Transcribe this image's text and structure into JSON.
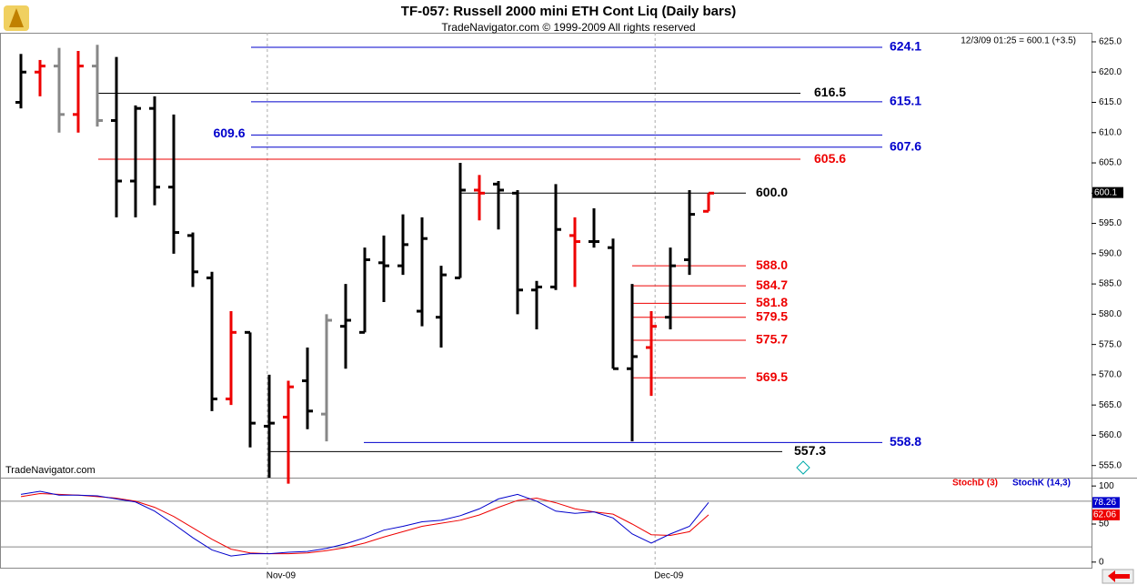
{
  "chart_data": [
    {
      "type": "ohlc",
      "title": "TF-057:  Russell 2000 mini ETH Cont Liq  (Daily bars)",
      "subtitle": "TradeNavigator.com © 1999-2009 All rights reserved",
      "info": "12/3/09 01:25 = 600.1 (+3.5)",
      "watermark": "TradeNavigator.com",
      "last": {
        "value": 600.1,
        "label": "600.1"
      },
      "ylim": [
        553,
        626.5
      ],
      "yticks": [
        {
          "value": 555,
          "label": "555.0"
        },
        {
          "value": 560,
          "label": "560.0"
        },
        {
          "value": 565,
          "label": "565.0"
        },
        {
          "value": 570,
          "label": "570.0"
        },
        {
          "value": 575,
          "label": "575.0"
        },
        {
          "value": 580,
          "label": "580.0"
        },
        {
          "value": 585,
          "label": "585.0"
        },
        {
          "value": 590,
          "label": "590.0"
        },
        {
          "value": 595,
          "label": "595.0"
        },
        {
          "value": 600,
          "label": "600.0"
        },
        {
          "value": 605,
          "label": "605.0"
        },
        {
          "value": 610,
          "label": "610.0"
        },
        {
          "value": 615,
          "label": "615.0"
        },
        {
          "value": 620,
          "label": "620.0"
        },
        {
          "value": 625,
          "label": "625.0"
        }
      ],
      "open": [
        615,
        620,
        621,
        613,
        621,
        612,
        602,
        614,
        601,
        593,
        586,
        566,
        577,
        561.5,
        563,
        569,
        563.5,
        578,
        577,
        588.5,
        588,
        580.5,
        579.5,
        586,
        600.5,
        601.5,
        600,
        584,
        584.5,
        593,
        592,
        591,
        571,
        574.5,
        579.5,
        589,
        597
      ],
      "high": [
        623,
        622,
        624,
        623.5,
        624.5,
        622.5,
        614.5,
        616,
        613,
        593.5,
        587,
        580.5,
        577,
        570,
        569,
        574.5,
        580,
        585,
        591,
        593,
        596.5,
        596,
        588,
        605,
        603,
        602,
        600.5,
        585.5,
        601.5,
        596,
        597.5,
        592.5,
        585,
        580.5,
        591,
        600.5,
        600
      ],
      "low": [
        614,
        616,
        610,
        610,
        611,
        596,
        596,
        598,
        590,
        584.5,
        564,
        565,
        558,
        553,
        552,
        561,
        559,
        571,
        577,
        582,
        586.5,
        578,
        574.5,
        586,
        595.5,
        594,
        580,
        577.5,
        584,
        584.5,
        591,
        571,
        559,
        566.5,
        577.5,
        586.5,
        597
      ],
      "close": [
        620,
        621,
        613,
        621,
        612,
        602,
        614,
        601,
        593.5,
        587,
        566,
        577,
        562,
        562,
        568,
        564,
        579,
        579,
        589,
        588,
        591.5,
        592.5,
        586.5,
        600.5,
        600,
        600.5,
        584,
        584.5,
        594,
        592,
        592,
        571,
        573,
        578,
        588,
        596.5,
        600
      ],
      "colors": [
        "#000",
        "#e00",
        "#888",
        "#e00",
        "#888",
        "#000",
        "#000",
        "#000",
        "#000",
        "#000",
        "#000",
        "#e00",
        "#000",
        "#000",
        "#e00",
        "#000",
        "#888",
        "#000",
        "#000",
        "#000",
        "#000",
        "#000",
        "#000",
        "#000",
        "#e00",
        "#000",
        "#000",
        "#000",
        "#000",
        "#e00",
        "#000",
        "#000",
        "#000",
        "#e00",
        "#000",
        "#000",
        "#e00"
      ],
      "levels": {
        "values": [
          624.1,
          616.5,
          615.1,
          609.6,
          607.6,
          605.6,
          600,
          588,
          584.7,
          581.8,
          579.5,
          575.7,
          569.5,
          558.8,
          557.3
        ],
        "value_labels": [
          "624.1",
          "616.5",
          "615.1",
          "609.6",
          "607.6",
          "605.6",
          "600.0",
          "588.0",
          "584.7",
          "581.8",
          "579.5",
          "575.7",
          "569.5",
          "558.8",
          "557.3"
        ],
        "colors": [
          "#00c",
          "#000",
          "#00c",
          "#00c",
          "#00c",
          "#e00",
          "#000",
          "#e00",
          "#e00",
          "#e00",
          "#e00",
          "#e00",
          "#e00",
          "#00c",
          "#000"
        ]
      }
    },
    {
      "type": "line",
      "ylim": [
        -5,
        105
      ],
      "yticks": [
        0,
        50,
        100
      ],
      "hlines": [
        20,
        80
      ],
      "xlabels": [
        "Nov-09",
        "Dec-09"
      ],
      "series": [
        {
          "name": "StochD (3)",
          "color": "#e00",
          "values": [
            86,
            90,
            89,
            88,
            86,
            84,
            80,
            72,
            60,
            45,
            30,
            17,
            12,
            11,
            11,
            12,
            15,
            19,
            25,
            33,
            40,
            47,
            51,
            55,
            62,
            72,
            81,
            84,
            78,
            70,
            66,
            63,
            50,
            36,
            35,
            40,
            62.06
          ]
        },
        {
          "name": "StochK (14,3)",
          "color": "#00c",
          "values": [
            89,
            93,
            88,
            88,
            87,
            83,
            79,
            67,
            50,
            32,
            16,
            8,
            11,
            11,
            13,
            14,
            18,
            24,
            32,
            42,
            47,
            53,
            55,
            61,
            70,
            83,
            89,
            80,
            67,
            64,
            66,
            58,
            37,
            25,
            37,
            47,
            78.26
          ]
        }
      ]
    }
  ]
}
